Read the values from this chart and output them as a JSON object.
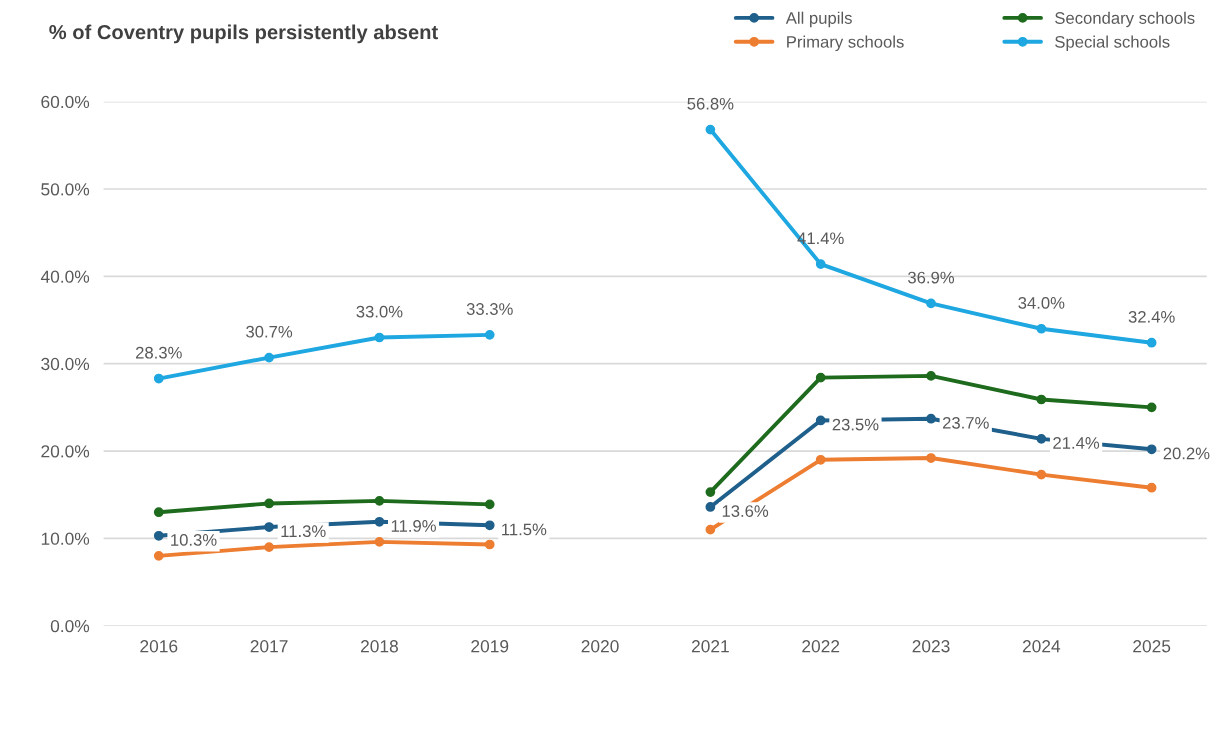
{
  "chart_data": {
    "type": "line",
    "title": "% of Coventry pupils persistently absent",
    "categories": [
      "2016",
      "2017",
      "2018",
      "2019",
      "2020",
      "2021",
      "2022",
      "2023",
      "2024",
      "2025"
    ],
    "series": [
      {
        "name": "All pupils",
        "color": "#1f5f8b",
        "values": [
          10.3,
          11.3,
          11.9,
          11.5,
          null,
          13.6,
          23.5,
          23.7,
          21.4,
          20.2
        ],
        "value_labels": [
          "10.3%",
          "11.3%",
          "11.9%",
          "11.5%",
          null,
          "13.6%",
          "23.5%",
          "23.7%",
          "21.4%",
          "20.2%"
        ]
      },
      {
        "name": "Primary schools",
        "color": "#ed7d31",
        "values": [
          8.0,
          9.0,
          9.6,
          9.3,
          null,
          11.0,
          19.0,
          19.2,
          17.3,
          15.8
        ]
      },
      {
        "name": "Secondary schools",
        "color": "#1e6b1e",
        "values": [
          13.0,
          14.0,
          14.3,
          13.9,
          null,
          15.3,
          28.4,
          28.6,
          25.9,
          25.0
        ]
      },
      {
        "name": "Special schools",
        "color": "#1ea7e0",
        "values": [
          28.3,
          30.7,
          33.0,
          33.3,
          null,
          56.8,
          41.4,
          36.9,
          34.0,
          32.4
        ],
        "value_labels": [
          "28.3%",
          "30.7%",
          "33.0%",
          "33.3%",
          null,
          "56.8%",
          "41.4%",
          "36.9%",
          "34.0%",
          "32.4%"
        ]
      }
    ],
    "ylim": [
      0,
      60
    ],
    "yticks": [
      {
        "value": 0,
        "label": "0.0%"
      },
      {
        "value": 10,
        "label": "10.0%"
      },
      {
        "value": 20,
        "label": "20.0%"
      },
      {
        "value": 30,
        "label": "30.0%"
      },
      {
        "value": 40,
        "label": "40.0%"
      },
      {
        "value": 50,
        "label": "50.0%"
      },
      {
        "value": 60,
        "label": "60.0%"
      }
    ],
    "grid": "y",
    "legend": "top right",
    "marker": "circle",
    "line_style": "solid"
  }
}
